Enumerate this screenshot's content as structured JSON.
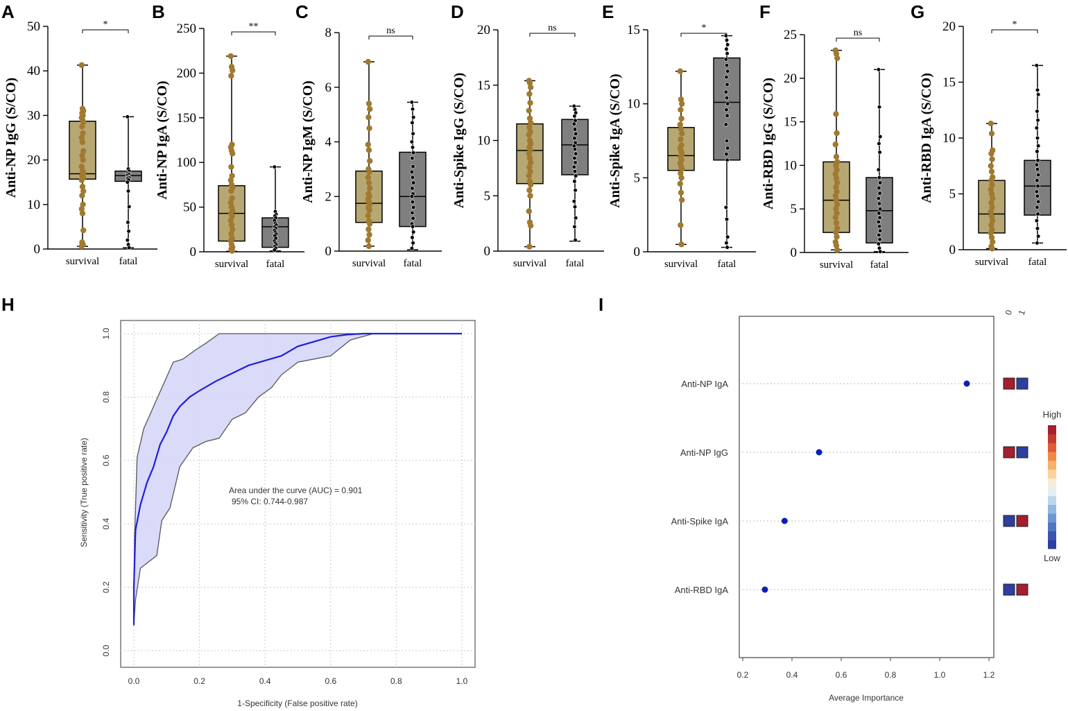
{
  "chart_data": [
    {
      "type": "box",
      "panel": "A",
      "title": "",
      "ylabel": "Anti-NP IgG (S/CO)",
      "ylim": [
        0,
        50
      ],
      "yticks": [
        0,
        10,
        20,
        30,
        40,
        50
      ],
      "categories": [
        "survival",
        "fatal"
      ],
      "significance": "*",
      "series": [
        {
          "name": "survival",
          "min": 0.6,
          "q1": 15.7,
          "median": 16.9,
          "q3": 28.7,
          "max": 41.3,
          "points": [
            41.3,
            31.5,
            31,
            30.5,
            30,
            29.5,
            29,
            28.5,
            27.5,
            26,
            25,
            24,
            22,
            21,
            20,
            18.5,
            17.5,
            17,
            16.5,
            16,
            15.5,
            14,
            13,
            12,
            10,
            9,
            8,
            4.2,
            1.5,
            1,
            0.6
          ]
        },
        {
          "name": "fatal",
          "min": 0.3,
          "q1": 15.2,
          "median": 16.5,
          "q3": 17.5,
          "max": 29.7,
          "points": [
            29.7,
            18,
            17.5,
            17,
            16.8,
            16.5,
            16.2,
            16,
            15.8,
            15.5,
            15,
            13,
            9.5,
            6,
            4,
            2,
            1,
            0.3
          ]
        }
      ]
    },
    {
      "type": "box",
      "panel": "B",
      "ylabel": "Anti-NP IgA (S/CO)",
      "ylim": [
        0,
        250
      ],
      "yticks": [
        0,
        50,
        100,
        150,
        200,
        250
      ],
      "categories": [
        "survival",
        "fatal"
      ],
      "significance": "**",
      "series": [
        {
          "name": "survival",
          "min": 0.5,
          "q1": 12,
          "median": 43,
          "q3": 74,
          "max": 219,
          "points": [
            219,
            207,
            203,
            197,
            120,
            117,
            113,
            110,
            95,
            85,
            80,
            75,
            72,
            68,
            60,
            55,
            50,
            46,
            43,
            40,
            35,
            30,
            25,
            20,
            15,
            12,
            8,
            5,
            3,
            1
          ]
        },
        {
          "name": "fatal",
          "min": 1,
          "q1": 5,
          "median": 28,
          "q3": 38,
          "max": 95,
          "points": [
            95,
            45,
            42,
            40,
            38,
            35,
            32,
            30,
            28,
            26,
            24,
            22,
            20,
            18,
            15,
            12,
            10,
            8,
            6,
            4,
            2
          ]
        }
      ]
    },
    {
      "type": "box",
      "panel": "C",
      "ylabel": "Anti-NP IgM (S/CO)",
      "ylim": [
        0,
        8
      ],
      "yticks": [
        0,
        2,
        4,
        6,
        8
      ],
      "categories": [
        "survival",
        "fatal"
      ],
      "significance": "ns",
      "series": [
        {
          "name": "survival",
          "min": 0.18,
          "q1": 1.05,
          "median": 1.75,
          "q3": 2.93,
          "max": 6.93,
          "points": [
            6.93,
            5.4,
            5.2,
            4.9,
            4.5,
            3.9,
            3.7,
            3.3,
            3.0,
            2.9,
            2.7,
            2.5,
            2.3,
            2.1,
            2.0,
            1.9,
            1.8,
            1.7,
            1.6,
            1.5,
            1.3,
            1.1,
            1.0,
            0.8,
            0.6,
            0.4,
            0.18
          ]
        },
        {
          "name": "fatal",
          "min": 0.05,
          "q1": 0.9,
          "median": 2.0,
          "q3": 3.62,
          "max": 5.45,
          "points": [
            5.45,
            5.2,
            4.9,
            4.7,
            4.3,
            4.0,
            3.8,
            3.6,
            3.4,
            3.1,
            2.9,
            2.7,
            2.5,
            2.3,
            2.1,
            2.0,
            1.8,
            1.6,
            1.4,
            1.2,
            1.0,
            0.9,
            0.7,
            0.5,
            0.3,
            0.1
          ]
        }
      ]
    },
    {
      "type": "box",
      "panel": "D",
      "ylabel": "Anti-Spike IgG (S/CO)",
      "ylim": [
        0,
        20
      ],
      "yticks": [
        0,
        5,
        10,
        15,
        20
      ],
      "categories": [
        "survival",
        "fatal"
      ],
      "significance": "ns",
      "series": [
        {
          "name": "survival",
          "min": 0.4,
          "q1": 6.1,
          "median": 9.1,
          "q3": 11.5,
          "max": 15.4,
          "points": [
            15.4,
            15.2,
            14.8,
            14.2,
            13.4,
            12.7,
            12.0,
            11.6,
            11.2,
            10.8,
            10.5,
            10.0,
            9.7,
            9.4,
            9.1,
            8.8,
            8.4,
            8.0,
            7.6,
            7.2,
            6.8,
            6.3,
            6.0,
            5.5,
            5.0,
            3.6,
            2.6,
            2.3,
            0.4
          ]
        },
        {
          "name": "fatal",
          "min": 0.9,
          "q1": 6.9,
          "median": 9.6,
          "q3": 11.9,
          "max": 13.1,
          "points": [
            13.1,
            12.8,
            12.5,
            12.2,
            11.8,
            11.5,
            11.0,
            10.6,
            10.2,
            9.8,
            9.5,
            9.2,
            8.8,
            8.4,
            8.0,
            7.6,
            7.2,
            6.8,
            6.3,
            5.5,
            4.5,
            4.0,
            3.0,
            2.2,
            1.0
          ]
        }
      ]
    },
    {
      "type": "box",
      "panel": "E",
      "ylabel": "Anti-Spike IgA (S/CO)",
      "ylim": [
        0,
        15
      ],
      "yticks": [
        0,
        5,
        10,
        15
      ],
      "categories": [
        "survival",
        "fatal"
      ],
      "significance": "*",
      "series": [
        {
          "name": "survival",
          "min": 0.5,
          "q1": 5.5,
          "median": 6.5,
          "q3": 8.4,
          "max": 12.2,
          "points": [
            12.2,
            10.3,
            10.0,
            9.6,
            9.0,
            8.6,
            8.3,
            8.0,
            7.6,
            7.2,
            7.0,
            6.8,
            6.6,
            6.4,
            6.2,
            6.0,
            5.8,
            5.6,
            5.3,
            5.0,
            4.6,
            4.0,
            3.5,
            1.8,
            0.5
          ]
        },
        {
          "name": "fatal",
          "min": 0.3,
          "q1": 6.2,
          "median": 10.1,
          "q3": 13.1,
          "max": 14.6,
          "points": [
            14.6,
            14.3,
            14.0,
            13.7,
            13.4,
            13.0,
            12.6,
            12.2,
            11.8,
            11.3,
            10.8,
            10.4,
            10.0,
            9.6,
            9.2,
            8.6,
            7.5,
            7.0,
            6.6,
            6.2,
            3.0,
            2.2,
            1.0,
            0.6,
            0.3
          ]
        }
      ]
    },
    {
      "type": "box",
      "panel": "F",
      "ylabel": "Anti-RBD IgG (S/CO)",
      "ylim": [
        0,
        25
      ],
      "yticks": [
        0,
        5,
        10,
        15,
        20,
        25
      ],
      "categories": [
        "survival",
        "fatal"
      ],
      "significance": "ns",
      "series": [
        {
          "name": "survival",
          "min": 0.3,
          "q1": 2.3,
          "median": 6.0,
          "q3": 10.4,
          "max": 23.2,
          "points": [
            23.2,
            22.8,
            22.3,
            15.9,
            13.7,
            12.4,
            11.0,
            10.4,
            10.0,
            9.5,
            9.0,
            8.5,
            8.0,
            7.5,
            7.0,
            6.5,
            6.0,
            5.5,
            5.0,
            4.5,
            4.0,
            3.4,
            2.8,
            2.3,
            1.8,
            1.2,
            0.8,
            0.3
          ]
        },
        {
          "name": "fatal",
          "min": 0.1,
          "q1": 1.1,
          "median": 4.8,
          "q3": 8.6,
          "max": 21.0,
          "points": [
            21.0,
            16.7,
            13.3,
            12.5,
            11.5,
            9.5,
            8.6,
            8.0,
            7.4,
            6.8,
            6.2,
            5.6,
            5.0,
            4.5,
            4.0,
            3.5,
            3.0,
            2.5,
            2.0,
            1.5,
            1.0,
            0.5,
            0.1
          ]
        }
      ]
    },
    {
      "type": "box",
      "panel": "G",
      "ylabel": "Anti-RBD IgA (S/CO)",
      "ylim": [
        0,
        20
      ],
      "yticks": [
        0,
        5,
        10,
        15,
        20
      ],
      "categories": [
        "survival",
        "fatal"
      ],
      "significance": "*",
      "series": [
        {
          "name": "survival",
          "min": 0.1,
          "q1": 1.5,
          "median": 3.2,
          "q3": 6.2,
          "max": 11.3,
          "points": [
            11.3,
            10.4,
            8.9,
            8.6,
            8.1,
            7.5,
            7.0,
            6.5,
            6.2,
            5.8,
            5.4,
            5.0,
            4.6,
            4.2,
            3.8,
            3.4,
            3.0,
            2.6,
            2.2,
            1.8,
            1.5,
            1.1,
            0.7,
            0.3,
            0.1
          ]
        },
        {
          "name": "fatal",
          "min": 0.6,
          "q1": 3.1,
          "median": 5.7,
          "q3": 8.0,
          "max": 16.5,
          "points": [
            16.5,
            14.3,
            13.9,
            12.4,
            11.6,
            10.9,
            10.0,
            9.3,
            8.8,
            8.0,
            7.6,
            7.2,
            6.7,
            6.2,
            5.7,
            5.2,
            4.8,
            4.3,
            3.8,
            3.2,
            2.6,
            1.9,
            1.2,
            0.6
          ]
        }
      ]
    },
    {
      "type": "line",
      "panel": "H",
      "title": "",
      "xlabel": "1-Specificity (False positive rate)",
      "ylabel": "Sensitivity (True positive rate)",
      "xlim": [
        0,
        1
      ],
      "ylim": [
        0,
        1
      ],
      "xticks": [
        "0.0",
        "0.2",
        "0.4",
        "0.6",
        "0.8",
        "1.0"
      ],
      "yticks": [
        "0.0",
        "0.2",
        "0.4",
        "0.6",
        "0.8",
        "1.0"
      ],
      "annotation_line1": "Area under the curve (AUC) = 0.901",
      "annotation_line2": "95% CI: 0.744-0.987",
      "series": [
        {
          "name": "roc",
          "x": [
            0,
            0,
            0.005,
            0.02,
            0.04,
            0.06,
            0.08,
            0.1,
            0.12,
            0.14,
            0.17,
            0.2,
            0.25,
            0.29,
            0.35,
            0.4,
            0.45,
            0.5,
            0.55,
            0.6,
            0.65,
            0.7,
            0.75,
            1.0
          ],
          "y": [
            0.08,
            0.2,
            0.38,
            0.46,
            0.53,
            0.58,
            0.65,
            0.69,
            0.74,
            0.77,
            0.8,
            0.82,
            0.85,
            0.87,
            0.9,
            0.915,
            0.93,
            0.96,
            0.975,
            0.99,
            0.997,
            1.0,
            1.0,
            1.0
          ]
        },
        {
          "name": "ci_upper",
          "x": [
            0,
            0.002,
            0.01,
            0.03,
            0.06,
            0.09,
            0.12,
            0.15,
            0.19,
            0.22,
            0.26,
            1.0
          ],
          "y": [
            0.08,
            0.35,
            0.61,
            0.7,
            0.77,
            0.84,
            0.91,
            0.92,
            0.95,
            0.97,
            1.0,
            1.0
          ]
        },
        {
          "name": "ci_lower",
          "x": [
            0,
            0.005,
            0.02,
            0.045,
            0.07,
            0.085,
            0.11,
            0.14,
            0.18,
            0.22,
            0.26,
            0.3,
            0.34,
            0.38,
            0.42,
            0.45,
            0.5,
            0.55,
            0.6,
            0.66,
            0.73,
            1.0
          ],
          "y": [
            0.08,
            0.16,
            0.26,
            0.28,
            0.3,
            0.41,
            0.45,
            0.58,
            0.64,
            0.66,
            0.67,
            0.73,
            0.75,
            0.8,
            0.83,
            0.87,
            0.91,
            0.92,
            0.93,
            0.98,
            1.0,
            1.0
          ]
        }
      ]
    },
    {
      "type": "scatter",
      "panel": "I",
      "title": "",
      "xlabel": "Average Importance",
      "xlim": [
        0.2,
        1.2
      ],
      "xticks": [
        "0.2",
        "0.4",
        "0.6",
        "0.8",
        "1.0",
        "1.2"
      ],
      "categories": [
        "Anti-NP IgA",
        "Anti-NP IgG",
        "Anti-Spike IgA",
        "Anti-RBD IgA"
      ],
      "values": [
        1.11,
        0.51,
        0.37,
        0.29
      ],
      "class_columns": [
        "0",
        "1"
      ],
      "class_colors": [
        [
          "#a41f2f",
          "#2e3fa0"
        ],
        [
          "#a41f2f",
          "#2e3fa0"
        ],
        [
          "#2e3fa0",
          "#a41f2f"
        ],
        [
          "#2e3fa0",
          "#a41f2f"
        ]
      ],
      "legend_high": "High",
      "legend_low": "Low"
    }
  ],
  "colors": {
    "survival_fill": "#b7a773",
    "survival_point": "#a07a30",
    "fatal_fill": "#7f7f7f",
    "fatal_point": "#000000",
    "roc_line": "#1f1fd6",
    "roc_band": "#d6d6f8",
    "importance_point": "#0a1fb5"
  }
}
